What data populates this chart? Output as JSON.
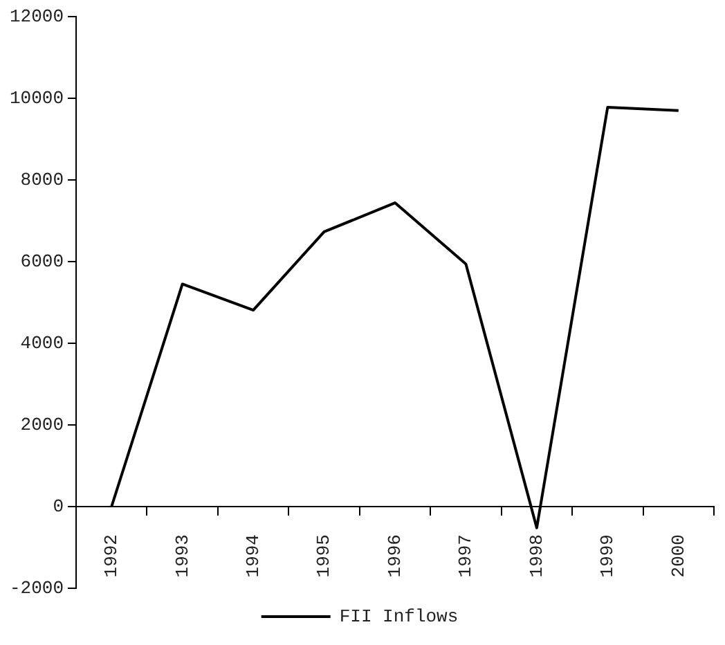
{
  "chart_data": {
    "type": "line",
    "categories": [
      "1992",
      "1993",
      "1994",
      "1995",
      "1996",
      "1997",
      "1998",
      "1999",
      "2000"
    ],
    "series": [
      {
        "name": "FII Inflows",
        "color": "#000000",
        "values": [
          0,
          5450,
          4810,
          6730,
          7440,
          5940,
          -520,
          9780,
          9700
        ]
      }
    ],
    "ylim": [
      -2000,
      12000
    ],
    "yticks": [
      -2000,
      0,
      2000,
      4000,
      6000,
      8000,
      10000,
      12000
    ],
    "grid": false,
    "legend": "bottom",
    "marker": "none",
    "line_style": "solid"
  }
}
